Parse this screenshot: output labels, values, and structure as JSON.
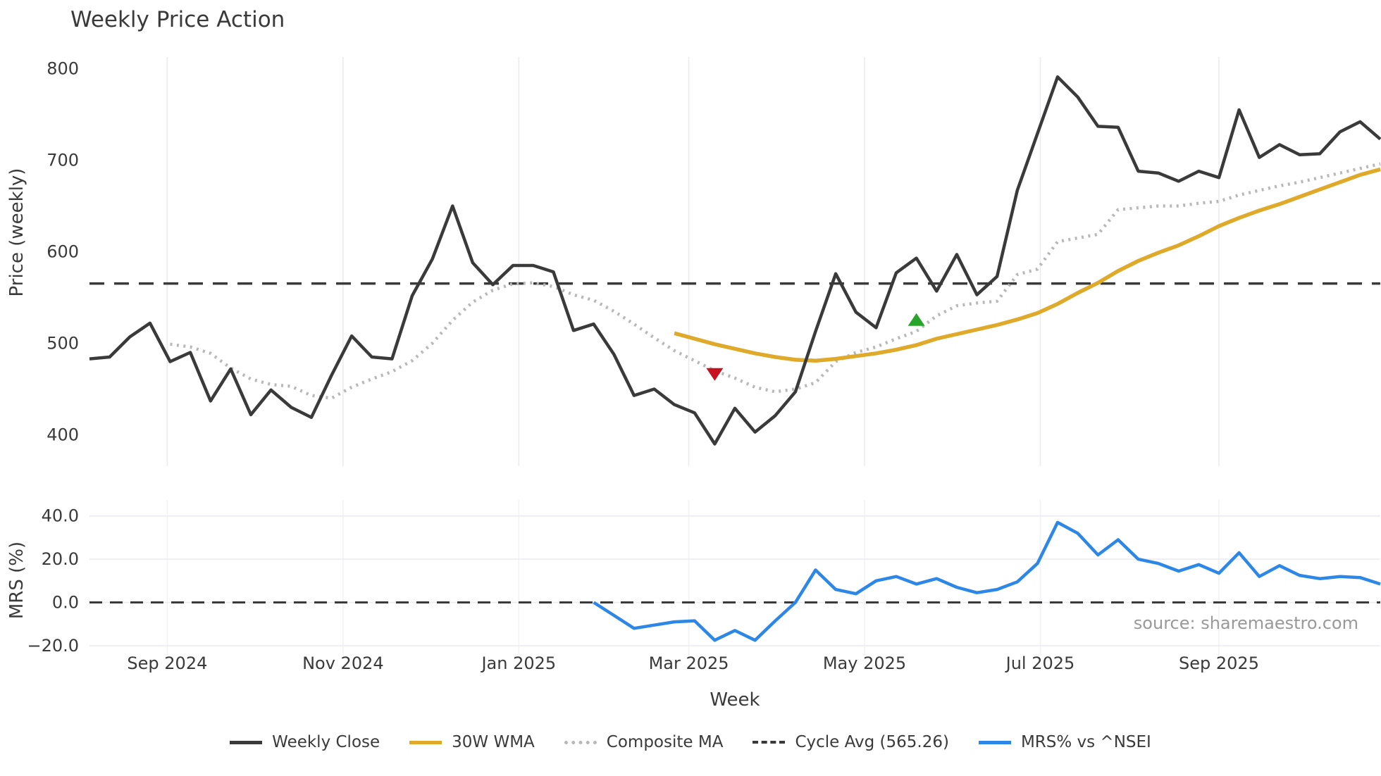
{
  "title": "Weekly Price Action",
  "xlabel": "Week",
  "source_text": "source: sharemaestro.com",
  "colors": {
    "weekly_close": "#3a3a3a",
    "wma_30w": "#dfa929",
    "composite_ma": "#b8b8b8",
    "cycle_avg": "#3a3a3a",
    "mrs": "#2d87e6",
    "sell_marker": "#c9101f",
    "buy_marker": "#28a428",
    "grid": "#ebebf2",
    "grid_faint": "#f2f2f7",
    "text": "#3a3a3a",
    "muted_text": "#999999"
  },
  "legend": [
    {
      "label": "Weekly Close",
      "style": "solid",
      "color": "#3a3a3a"
    },
    {
      "label": "30W WMA",
      "style": "solid",
      "color": "#dfa929"
    },
    {
      "label": "Composite MA",
      "style": "dotted",
      "color": "#b8b8b8"
    },
    {
      "label": "Cycle Avg (565.26)",
      "style": "dashed",
      "color": "#3a3a3a"
    },
    {
      "label": "MRS% vs ^NSEI",
      "style": "solid",
      "color": "#2d87e6"
    }
  ],
  "x_ticks": [
    {
      "label": "Sep 2024",
      "date": "2024-09-01"
    },
    {
      "label": "Nov 2024",
      "date": "2024-11-01"
    },
    {
      "label": "Jan 2025",
      "date": "2025-01-01"
    },
    {
      "label": "Mar 2025",
      "date": "2025-03-01"
    },
    {
      "label": "May 2025",
      "date": "2025-05-01"
    },
    {
      "label": "Jul 2025",
      "date": "2025-07-01"
    },
    {
      "label": "Sep 2025",
      "date": "2025-09-01"
    }
  ],
  "chart_data": [
    {
      "type": "line",
      "panel": "price",
      "title": "Weekly Price Action",
      "ylabel": "Price (weekly)",
      "ylim": [
        366,
        813
      ],
      "yticks": [
        {
          "value": 400,
          "label": "400"
        },
        {
          "value": 500,
          "label": "500"
        },
        {
          "value": 600,
          "label": "600"
        },
        {
          "value": 700,
          "label": "700"
        },
        {
          "value": 800,
          "label": "800"
        }
      ],
      "x_weeks": [
        "2024-08-05",
        "2024-08-12",
        "2024-08-19",
        "2024-08-26",
        "2024-09-02",
        "2024-09-09",
        "2024-09-16",
        "2024-09-23",
        "2024-09-30",
        "2024-10-07",
        "2024-10-14",
        "2024-10-21",
        "2024-10-28",
        "2024-11-04",
        "2024-11-11",
        "2024-11-18",
        "2024-11-25",
        "2024-12-02",
        "2024-12-09",
        "2024-12-16",
        "2024-12-23",
        "2024-12-30",
        "2025-01-06",
        "2025-01-13",
        "2025-01-20",
        "2025-01-27",
        "2025-02-03",
        "2025-02-10",
        "2025-02-17",
        "2025-02-24",
        "2025-03-03",
        "2025-03-10",
        "2025-03-17",
        "2025-03-24",
        "2025-03-31",
        "2025-04-07",
        "2025-04-14",
        "2025-04-21",
        "2025-04-28",
        "2025-05-05",
        "2025-05-12",
        "2025-05-19",
        "2025-05-26",
        "2025-06-02",
        "2025-06-09",
        "2025-06-16",
        "2025-06-23",
        "2025-06-30",
        "2025-07-07",
        "2025-07-14",
        "2025-07-21",
        "2025-07-28",
        "2025-08-04",
        "2025-08-11",
        "2025-08-18",
        "2025-08-25",
        "2025-09-01",
        "2025-09-08",
        "2025-09-15",
        "2025-09-22",
        "2025-09-29",
        "2025-10-06",
        "2025-10-13",
        "2025-10-20",
        "2025-10-27"
      ],
      "series": [
        {
          "name": "Weekly Close",
          "color": "#3a3a3a",
          "style": "solid",
          "values": [
            483,
            485,
            507,
            522,
            480,
            490,
            437,
            472,
            422,
            449,
            430,
            419,
            465,
            508,
            485,
            483,
            552,
            592,
            650,
            588,
            564,
            585,
            585,
            578,
            514,
            521,
            488,
            443,
            450,
            433,
            424,
            390,
            429,
            403,
            421,
            447,
            513,
            576,
            534,
            517,
            577,
            593,
            557,
            597,
            553,
            573,
            667,
            729,
            791,
            769,
            737,
            736,
            688,
            686,
            677,
            688,
            681,
            755,
            703,
            717,
            706,
            707,
            731,
            742,
            723
          ]
        },
        {
          "name": "30W WMA",
          "color": "#dfa929",
          "style": "solid",
          "values": [
            null,
            null,
            null,
            null,
            null,
            null,
            null,
            null,
            null,
            null,
            null,
            null,
            null,
            null,
            null,
            null,
            null,
            null,
            null,
            null,
            null,
            null,
            null,
            null,
            null,
            null,
            null,
            null,
            null,
            511,
            505,
            499,
            494,
            489,
            485,
            482,
            481,
            483,
            486,
            489,
            493,
            498,
            505,
            510,
            515,
            520,
            526,
            533,
            543,
            555,
            566,
            579,
            590,
            599,
            607,
            617,
            628,
            637,
            645,
            652,
            660,
            668,
            676,
            684,
            690
          ]
        },
        {
          "name": "Composite MA",
          "color": "#b8b8b8",
          "style": "dotted",
          "values": [
            null,
            null,
            null,
            null,
            499,
            496,
            489,
            473,
            461,
            455,
            453,
            443,
            440,
            452,
            461,
            469,
            481,
            500,
            525,
            545,
            558,
            565,
            566,
            562,
            553,
            547,
            535,
            521,
            506,
            492,
            481,
            470,
            462,
            452,
            447,
            450,
            457,
            480,
            490,
            496,
            505,
            513,
            530,
            541,
            544,
            546,
            575,
            581,
            611,
            615,
            619,
            646,
            648,
            650,
            650,
            653,
            655,
            662,
            667,
            672,
            676,
            681,
            686,
            691,
            696
          ]
        },
        {
          "name": "Cycle Avg (565.26)",
          "color": "#3a3a3a",
          "style": "dashed",
          "type": "hline",
          "value": 565.26
        }
      ],
      "markers": [
        {
          "name": "sell-signal",
          "shape": "triangle-down",
          "color": "#c9101f",
          "week": "2025-03-10",
          "value": 466
        },
        {
          "name": "buy-signal",
          "shape": "triangle-up",
          "color": "#28a428",
          "week": "2025-05-19",
          "value": 526
        }
      ]
    },
    {
      "type": "line",
      "panel": "mrs",
      "ylabel": "MRS (%)",
      "ylim": [
        -27,
        44
      ],
      "yticks": [
        {
          "value": -20,
          "label": "−20.0"
        },
        {
          "value": 0,
          "label": "0.0"
        },
        {
          "value": 20,
          "label": "20.0"
        },
        {
          "value": 40,
          "label": "40.0"
        }
      ],
      "zero_line_value": 0,
      "series": [
        {
          "name": "MRS% vs ^NSEI",
          "color": "#2d87e6",
          "style": "solid",
          "values": [
            null,
            null,
            null,
            null,
            null,
            null,
            null,
            null,
            null,
            null,
            null,
            null,
            null,
            null,
            null,
            null,
            null,
            null,
            null,
            null,
            null,
            null,
            null,
            null,
            null,
            0,
            -6,
            -12,
            -10.5,
            -9,
            -8.5,
            -17.5,
            -13,
            -17.5,
            -8.5,
            0,
            15,
            6,
            4,
            10,
            12,
            8.5,
            11,
            7,
            4.5,
            6,
            9.5,
            18,
            37,
            32,
            22,
            29,
            20,
            18,
            14.5,
            17.5,
            13.5,
            23,
            12,
            17,
            12.5,
            11,
            12,
            11.5,
            8.5
          ]
        }
      ]
    }
  ]
}
